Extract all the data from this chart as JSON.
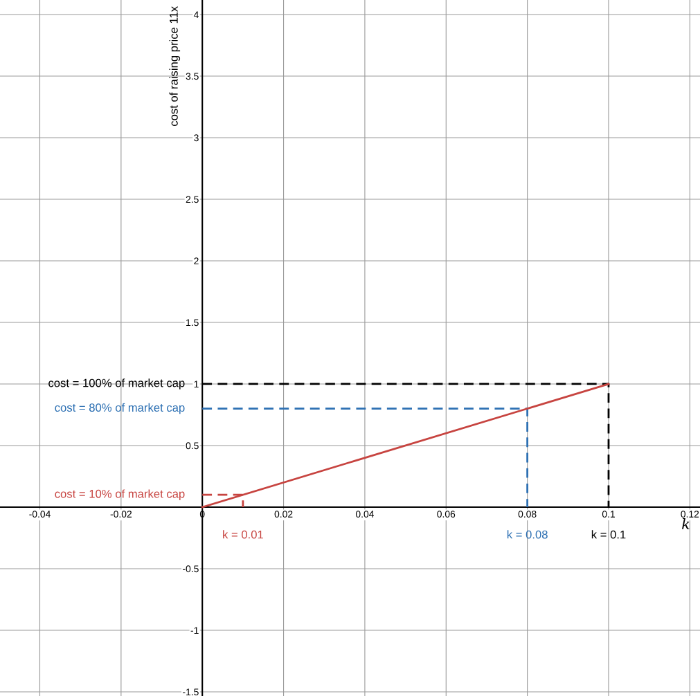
{
  "chart_data": {
    "type": "line",
    "xlabel": "k",
    "ylabel": "cost of raising price 11x",
    "series": [
      {
        "x": [
          0,
          0.1,
          0.1
        ],
        "values": [
          1,
          1,
          0
        ],
        "color": "#000000",
        "line_style": "dashed"
      },
      {
        "x": [
          0,
          0.08,
          0.08
        ],
        "values": [
          0.8,
          0.8,
          0
        ],
        "color": "#2d70b3",
        "line_style": "dashed"
      },
      {
        "x": [
          0,
          0.01,
          0.01
        ],
        "values": [
          0.1,
          0.1,
          0
        ],
        "color": "#c74440",
        "line_style": "dashed"
      },
      {
        "x": [
          0,
          0.1
        ],
        "values": [
          0,
          1
        ],
        "color": "#c74440",
        "line_style": "solid"
      }
    ],
    "annotations": [
      {
        "text": "cost = 100% of market cap",
        "x": 0,
        "y": 1
      },
      {
        "text": "cost = 80% of market cap",
        "x": 0,
        "y": 0.8
      },
      {
        "text": "cost = 10% of market cap",
        "x": 0,
        "y": 0.1
      },
      {
        "text": "k = 0.01",
        "x": 0.01,
        "y": 0
      },
      {
        "text": "k = 0.08",
        "x": 0.08,
        "y": 0
      },
      {
        "text": "k = 0.1",
        "x": 0.1,
        "y": 0
      }
    ],
    "xlim": [
      -0.0498,
      0.1225
    ],
    "ylim": [
      -1.534,
      4.118
    ],
    "xticks": [
      -0.04,
      -0.02,
      0,
      0.02,
      0.04,
      0.06,
      0.08,
      0.1,
      0.12
    ],
    "yticks": [
      -1.5,
      -1,
      -0.5,
      0.5,
      1,
      1.5,
      2,
      2.5,
      3,
      3.5,
      4
    ],
    "grid": true,
    "legend": false
  }
}
